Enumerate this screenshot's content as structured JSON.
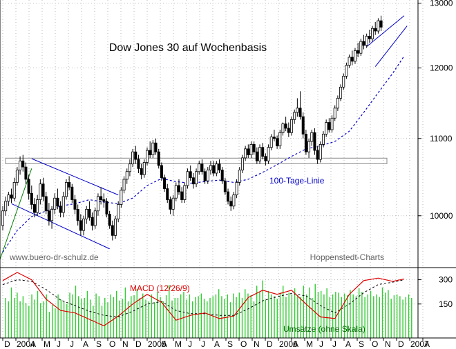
{
  "chart_data": [
    {
      "type": "candlestick",
      "title": "Dow Jones 30 auf Wochenbasis",
      "watermark_left": "www.buero-dr-schulz.de",
      "watermark_right": "Hoppenstedt-Charts",
      "y_axis_position": "right",
      "y_scale": "log",
      "ylim": [
        9380,
        13050
      ],
      "y_ticks": [
        10000,
        11000,
        12000,
        13000
      ],
      "grid": "dotted",
      "ma_label": "100-Tage-Linie",
      "colors": {
        "candle": "#000000",
        "moving_average": "#0000c8",
        "channel": "#0000c8",
        "trend": "#008000",
        "resistance": "#888888"
      },
      "resistance_level": 10700,
      "ohlc": [
        [
          9880,
          10120,
          9820,
          10060
        ],
        [
          10060,
          10240,
          10000,
          10180
        ],
        [
          10180,
          10300,
          10120,
          10260
        ],
        [
          10260,
          10340,
          10160,
          10220
        ],
        [
          10220,
          10480,
          10180,
          10420
        ],
        [
          10420,
          10620,
          10380,
          10580
        ],
        [
          10580,
          10760,
          10520,
          10700
        ],
        [
          10700,
          10780,
          10560,
          10620
        ],
        [
          10620,
          10680,
          10400,
          10460
        ],
        [
          10460,
          10520,
          10200,
          10280
        ],
        [
          10280,
          10380,
          10080,
          10140
        ],
        [
          10140,
          10220,
          9980,
          10040
        ],
        [
          10040,
          10260,
          10000,
          10200
        ],
        [
          10200,
          10460,
          10140,
          10400
        ],
        [
          10400,
          10480,
          10180,
          10240
        ],
        [
          10240,
          10300,
          10020,
          10060
        ],
        [
          10060,
          10160,
          9880,
          9940
        ],
        [
          9940,
          10120,
          9840,
          10080
        ],
        [
          10080,
          10280,
          10020,
          10220
        ],
        [
          10220,
          10340,
          10080,
          10120
        ],
        [
          10120,
          10180,
          9980,
          10040
        ],
        [
          10040,
          10300,
          9980,
          10240
        ],
        [
          10240,
          10460,
          10200,
          10420
        ],
        [
          10420,
          10500,
          10320,
          10360
        ],
        [
          10360,
          10400,
          10160,
          10200
        ],
        [
          10200,
          10260,
          10020,
          10080
        ],
        [
          10080,
          10140,
          9880,
          9940
        ],
        [
          9940,
          10020,
          9760,
          9820
        ],
        [
          9820,
          10000,
          9760,
          9960
        ],
        [
          9960,
          10120,
          9900,
          10080
        ],
        [
          10080,
          10180,
          9940,
          9980
        ],
        [
          9980,
          10040,
          9820,
          9880
        ],
        [
          9880,
          10100,
          9840,
          10060
        ],
        [
          10060,
          10280,
          10000,
          10240
        ],
        [
          10240,
          10360,
          10140,
          10200
        ],
        [
          10200,
          10280,
          10100,
          10180
        ],
        [
          10180,
          10220,
          9980,
          10020
        ],
        [
          10020,
          10060,
          9840,
          9880
        ],
        [
          9880,
          9940,
          9700,
          9760
        ],
        [
          9760,
          10000,
          9720,
          9960
        ],
        [
          9960,
          10180,
          9920,
          10140
        ],
        [
          10140,
          10360,
          10100,
          10320
        ],
        [
          10320,
          10500,
          10280,
          10460
        ],
        [
          10460,
          10600,
          10400,
          10560
        ],
        [
          10560,
          10720,
          10500,
          10660
        ],
        [
          10660,
          10860,
          10620,
          10820
        ],
        [
          10820,
          10900,
          10660,
          10720
        ],
        [
          10720,
          10780,
          10540,
          10600
        ],
        [
          10600,
          10660,
          10460,
          10520
        ],
        [
          10520,
          10720,
          10480,
          10680
        ],
        [
          10680,
          10880,
          10640,
          10840
        ],
        [
          10840,
          10960,
          10740,
          10780
        ],
        [
          10780,
          10980,
          10740,
          10940
        ],
        [
          10940,
          11000,
          10780,
          10820
        ],
        [
          10820,
          10860,
          10600,
          10640
        ],
        [
          10640,
          10680,
          10440,
          10480
        ],
        [
          10480,
          10520,
          10300,
          10340
        ],
        [
          10340,
          10400,
          10160,
          10200
        ],
        [
          10200,
          10240,
          10020,
          10080
        ],
        [
          10080,
          10260,
          10000,
          10220
        ],
        [
          10220,
          10420,
          10180,
          10380
        ],
        [
          10380,
          10460,
          10260,
          10300
        ],
        [
          10300,
          10360,
          10160,
          10200
        ],
        [
          10200,
          10420,
          10160,
          10380
        ],
        [
          10380,
          10600,
          10340,
          10560
        ],
        [
          10560,
          10640,
          10440,
          10480
        ],
        [
          10480,
          10540,
          10340,
          10400
        ],
        [
          10400,
          10600,
          10360,
          10560
        ],
        [
          10560,
          10700,
          10520,
          10660
        ],
        [
          10660,
          10720,
          10520,
          10560
        ],
        [
          10560,
          10600,
          10400,
          10440
        ],
        [
          10440,
          10620,
          10400,
          10580
        ],
        [
          10580,
          10700,
          10520,
          10640
        ],
        [
          10640,
          10700,
          10500,
          10540
        ],
        [
          10540,
          10700,
          10500,
          10660
        ],
        [
          10660,
          10720,
          10540,
          10580
        ],
        [
          10580,
          10620,
          10400,
          10440
        ],
        [
          10440,
          10480,
          10260,
          10300
        ],
        [
          10300,
          10340,
          10140,
          10180
        ],
        [
          10180,
          10240,
          10060,
          10120
        ],
        [
          10120,
          10300,
          10080,
          10260
        ],
        [
          10260,
          10460,
          10220,
          10420
        ],
        [
          10420,
          10620,
          10380,
          10580
        ],
        [
          10580,
          10780,
          10540,
          10740
        ],
        [
          10740,
          10900,
          10700,
          10860
        ],
        [
          10860,
          10920,
          10740,
          10780
        ],
        [
          10780,
          10960,
          10740,
          10920
        ],
        [
          10920,
          10960,
          10780,
          10820
        ],
        [
          10820,
          10880,
          10660,
          10700
        ],
        [
          10700,
          10920,
          10660,
          10880
        ],
        [
          10880,
          10940,
          10720,
          10760
        ],
        [
          10760,
          10800,
          10640,
          10700
        ],
        [
          10700,
          10920,
          10660,
          10880
        ],
        [
          10880,
          11060,
          10840,
          11020
        ],
        [
          11020,
          11120,
          10960,
          11000
        ],
        [
          11000,
          11040,
          10860,
          10900
        ],
        [
          10900,
          11120,
          10860,
          11080
        ],
        [
          11080,
          11220,
          11040,
          11200
        ],
        [
          11200,
          11300,
          11100,
          11140
        ],
        [
          11140,
          11220,
          11020,
          11080
        ],
        [
          11080,
          11300,
          11040,
          11260
        ],
        [
          11260,
          11400,
          11200,
          11360
        ],
        [
          11360,
          11560,
          11300,
          11420
        ],
        [
          11420,
          11660,
          11260,
          11300
        ],
        [
          11300,
          11360,
          11000,
          11060
        ],
        [
          11060,
          11120,
          10780,
          10820
        ],
        [
          10820,
          11000,
          10740,
          10960
        ],
        [
          10960,
          11120,
          10900,
          11080
        ],
        [
          11080,
          11140,
          10780,
          10840
        ],
        [
          10840,
          10900,
          10660,
          10720
        ],
        [
          10720,
          10960,
          10680,
          10920
        ],
        [
          10920,
          11100,
          10880,
          11060
        ],
        [
          11060,
          11260,
          11020,
          11220
        ],
        [
          11220,
          11280,
          11080,
          11120
        ],
        [
          11120,
          11320,
          11080,
          11280
        ],
        [
          11280,
          11460,
          11240,
          11420
        ],
        [
          11420,
          11600,
          11380,
          11560
        ],
        [
          11560,
          11760,
          11520,
          11720
        ],
        [
          11720,
          11920,
          11680,
          11880
        ],
        [
          11880,
          12080,
          11840,
          12040
        ],
        [
          12040,
          12200,
          12000,
          12160
        ],
        [
          12160,
          12260,
          12040,
          12100
        ],
        [
          12100,
          12300,
          12060,
          12260
        ],
        [
          12260,
          12380,
          12160,
          12220
        ],
        [
          12220,
          12440,
          12180,
          12400
        ],
        [
          12400,
          12500,
          12280,
          12340
        ],
        [
          12340,
          12520,
          12300,
          12480
        ],
        [
          12480,
          12580,
          12380,
          12440
        ],
        [
          12440,
          12640,
          12400,
          12600
        ],
        [
          12600,
          12700,
          12500,
          12560
        ],
        [
          12560,
          12760,
          12520,
          12720
        ],
        [
          12720,
          12800,
          12560,
          12620
        ]
      ],
      "moving_average": [
        [
          0,
          9560
        ],
        [
          5,
          9820
        ],
        [
          10,
          9990
        ],
        [
          15,
          10060
        ],
        [
          20,
          10120
        ],
        [
          25,
          10150
        ],
        [
          30,
          10200
        ],
        [
          35,
          10170
        ],
        [
          40,
          10150
        ],
        [
          45,
          10220
        ],
        [
          50,
          10380
        ],
        [
          55,
          10470
        ],
        [
          60,
          10430
        ],
        [
          65,
          10410
        ],
        [
          70,
          10430
        ],
        [
          75,
          10450
        ],
        [
          80,
          10420
        ],
        [
          85,
          10460
        ],
        [
          90,
          10550
        ],
        [
          95,
          10650
        ],
        [
          100,
          10760
        ],
        [
          105,
          10860
        ],
        [
          110,
          10900
        ],
        [
          115,
          10960
        ],
        [
          120,
          11100
        ],
        [
          125,
          11360
        ],
        [
          130,
          11640
        ],
        [
          135,
          11920
        ],
        [
          139,
          12180
        ]
      ],
      "channel_2004": [
        [
          [
            10,
            10730
          ],
          [
            40,
            10260
          ]
        ],
        [
          [
            3,
            10150
          ],
          [
            37,
            9600
          ]
        ]
      ],
      "channel_2007": [
        [
          126,
          12320
        ],
        [
          139,
          12800
        ],
        [
          129,
          12020
        ],
        [
          140,
          12640
        ]
      ],
      "trend_line": [
        [
          -6,
          9000
        ],
        [
          10,
          10600
        ]
      ],
      "x_labels": [
        "D",
        "2004",
        "A",
        "M",
        "J",
        "J",
        "A",
        "S",
        "O",
        "N",
        "D",
        "2005",
        "A",
        "M",
        "J",
        "J",
        "A",
        "S",
        "O",
        "N",
        "D",
        "2006",
        "A",
        "M",
        "J",
        "J",
        "A",
        "S",
        "O",
        "N",
        "D",
        "2007",
        "A"
      ]
    },
    {
      "type": "macd_volume",
      "macd_label": "MACD (12/26/9)",
      "volume_label": "Umsätze (ohne Skala)",
      "y_ticks_labels": [
        "300",
        "150"
      ],
      "colors": {
        "macd": "#dd0000",
        "signal": "#000000",
        "volume": "#33cc33"
      },
      "macd": [
        [
          0,
          295
        ],
        [
          5,
          345
        ],
        [
          10,
          300
        ],
        [
          15,
          180
        ],
        [
          20,
          110
        ],
        [
          25,
          95
        ],
        [
          30,
          55
        ],
        [
          35,
          15
        ],
        [
          40,
          75
        ],
        [
          45,
          150
        ],
        [
          50,
          210
        ],
        [
          55,
          160
        ],
        [
          60,
          50
        ],
        [
          65,
          80
        ],
        [
          70,
          95
        ],
        [
          75,
          60
        ],
        [
          80,
          75
        ],
        [
          85,
          190
        ],
        [
          90,
          235
        ],
        [
          95,
          210
        ],
        [
          100,
          235
        ],
        [
          105,
          150
        ],
        [
          110,
          70
        ],
        [
          115,
          60
        ],
        [
          120,
          210
        ],
        [
          125,
          295
        ],
        [
          130,
          310
        ],
        [
          135,
          290
        ],
        [
          139,
          305
        ]
      ],
      "signal": [
        [
          0,
          270
        ],
        [
          5,
          300
        ],
        [
          10,
          290
        ],
        [
          15,
          240
        ],
        [
          20,
          175
        ],
        [
          25,
          140
        ],
        [
          30,
          105
        ],
        [
          35,
          80
        ],
        [
          40,
          70
        ],
        [
          45,
          105
        ],
        [
          50,
          150
        ],
        [
          55,
          165
        ],
        [
          60,
          110
        ],
        [
          65,
          90
        ],
        [
          70,
          90
        ],
        [
          75,
          80
        ],
        [
          80,
          80
        ],
        [
          85,
          120
        ],
        [
          90,
          170
        ],
        [
          95,
          195
        ],
        [
          100,
          215
        ],
        [
          105,
          200
        ],
        [
          110,
          140
        ],
        [
          115,
          95
        ],
        [
          120,
          150
        ],
        [
          125,
          220
        ],
        [
          130,
          270
        ],
        [
          135,
          285
        ],
        [
          139,
          300
        ]
      ],
      "volume": [
        230,
        210,
        290,
        230,
        260,
        210,
        240,
        200,
        185,
        250,
        220,
        270,
        200,
        210,
        250,
        150,
        190,
        170,
        250,
        220,
        210,
        195,
        260,
        250,
        300,
        240,
        225,
        230,
        270,
        220,
        185,
        255,
        240,
        185,
        230,
        205,
        250,
        235,
        270,
        215,
        225,
        290,
        210,
        240,
        245,
        280,
        230,
        255,
        220,
        210,
        250,
        205,
        265,
        235,
        210,
        245,
        305,
        215,
        230,
        230,
        250,
        265,
        220,
        250,
        210,
        235,
        240,
        255,
        225,
        210,
        230,
        240,
        250,
        280,
        240,
        225,
        250,
        205,
        255,
        235,
        260,
        230,
        280,
        255,
        245,
        210,
        300,
        265,
        330,
        220,
        270,
        250,
        240,
        225,
        260,
        300,
        235,
        260,
        250,
        285,
        245,
        235,
        300,
        250,
        290,
        230,
        310,
        265,
        270,
        250,
        285,
        235,
        250,
        265,
        260,
        235,
        255,
        245,
        275,
        250,
        240,
        285,
        265,
        235,
        250,
        270,
        240,
        250,
        235,
        290,
        260,
        275,
        225,
        245,
        250,
        240,
        220,
        235,
        250,
        230
      ]
    }
  ]
}
